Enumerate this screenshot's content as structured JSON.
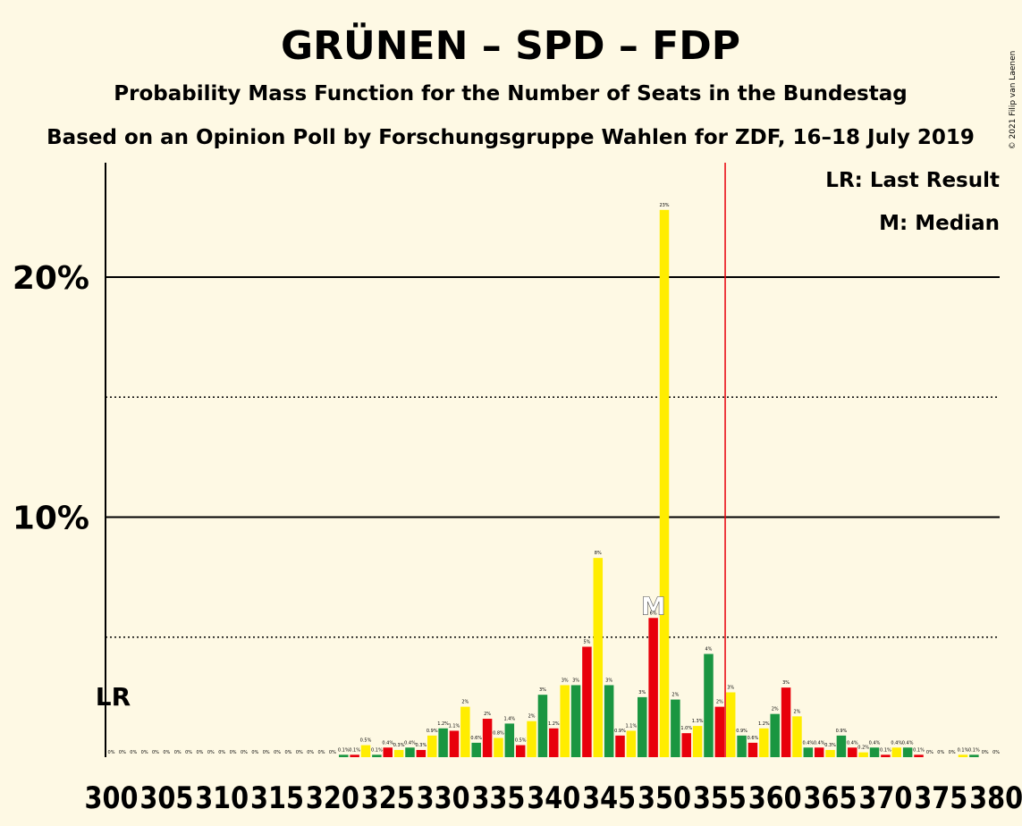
{
  "chart_data": {
    "type": "bar",
    "title": "GRÜNEN – SPD – FDP",
    "subtitle1": "Probability Mass Function for the Number of Seats in the Bundestag",
    "subtitle2": "Based on an Opinion Poll by Forschungsgruppe Wahlen for ZDF, 16–18 July 2019",
    "copyright": "© 2021 Filip van Laenen",
    "legend": {
      "lr": "LR: Last Result",
      "m": "M: Median",
      "placement": "top-right"
    },
    "lr_label": "LR",
    "median_label": "M",
    "majority_seat": 355,
    "median_seat": 349,
    "last_result_seat": 300,
    "ylim": [
      0,
      25
    ],
    "yticks": [
      {
        "v": 10,
        "label": "10%"
      },
      {
        "v": 20,
        "label": "20%"
      }
    ],
    "dotted_lines": [
      5,
      15
    ],
    "xlabels": [
      "300",
      "305",
      "310",
      "315",
      "320",
      "325",
      "330",
      "335",
      "340",
      "345",
      "350",
      "355",
      "360",
      "365",
      "370",
      "375",
      "380"
    ],
    "colors": {
      "green": "#1A9641",
      "red": "#E8000B",
      "yellow": "#FFED00",
      "majority": "#E8000B",
      "text": "#000000",
      "background": "#FEF9E4"
    },
    "color_cycle": [
      "green",
      "red",
      "yellow"
    ],
    "x": [
      300,
      301,
      302,
      303,
      304,
      305,
      306,
      307,
      308,
      309,
      310,
      311,
      312,
      313,
      314,
      315,
      316,
      317,
      318,
      319,
      320,
      321,
      322,
      323,
      324,
      325,
      326,
      327,
      328,
      329,
      330,
      331,
      332,
      333,
      334,
      335,
      336,
      337,
      338,
      339,
      340,
      341,
      342,
      343,
      344,
      345,
      346,
      347,
      348,
      349,
      350,
      351,
      352,
      353,
      354,
      355,
      356,
      357,
      358,
      359,
      360,
      361,
      362,
      363,
      364,
      365,
      366,
      367,
      368,
      369,
      370,
      371,
      372,
      373,
      374,
      375,
      376,
      377,
      378,
      379,
      380
    ],
    "values": [
      0,
      0,
      0,
      0,
      0,
      0,
      0,
      0,
      0,
      0,
      0,
      0,
      0,
      0,
      0,
      0,
      0,
      0,
      0,
      0,
      0,
      0.1,
      0.1,
      0.5,
      0.1,
      0.4,
      0.3,
      0.4,
      0.3,
      0.9,
      1.2,
      1.1,
      2.1,
      0.6,
      1.6,
      0.8,
      1.4,
      0.5,
      1.5,
      2.6,
      1.2,
      3.0,
      3.0,
      4.6,
      8.3,
      3.0,
      0.9,
      1.1,
      2.5,
      5.8,
      22.8,
      2.4,
      1.0,
      1.3,
      4.3,
      2.1,
      2.7,
      0.9,
      0.6,
      1.2,
      1.8,
      2.9,
      1.7,
      0.4,
      0.4,
      0.3,
      0.9,
      0.4,
      0.2,
      0.4,
      0.1,
      0.4,
      0.4,
      0.1,
      0,
      0,
      0,
      0.1,
      0.1,
      0,
      0
    ],
    "value_labels": [
      "0%",
      "0%",
      "0%",
      "0%",
      "0%",
      "0%",
      "0%",
      "0%",
      "0%",
      "0%",
      "0%",
      "0%",
      "0%",
      "0%",
      "0%",
      "0%",
      "0%",
      "0%",
      "0%",
      "0%",
      "0%",
      "0.1%",
      "0.1%",
      "0.5%",
      "0.1%",
      "0.4%",
      "0.3%",
      "0.4%",
      "0.3%",
      "0.9%",
      "1.2%",
      "1.1%",
      "2%",
      "0.6%",
      "2%",
      "0.8%",
      "1.4%",
      "0.5%",
      "2%",
      "3%",
      "1.2%",
      "3%",
      "3%",
      "5%",
      "8%",
      "3%",
      "0.9%",
      "1.1%",
      "3%",
      "6%",
      "23%",
      "2%",
      "1.0%",
      "1.3%",
      "4%",
      "2%",
      "3%",
      "0.9%",
      "0.6%",
      "1.2%",
      "2%",
      "3%",
      "2%",
      "0.4%",
      "0.4%",
      "0.3%",
      "0.9%",
      "0.4%",
      "0.2%",
      "0.4%",
      "0.1%",
      "0.4%",
      "0.4%",
      "0.1%",
      "0%",
      "0%",
      "0%",
      "0.1%",
      "0.1%",
      "0%",
      "0%"
    ]
  }
}
